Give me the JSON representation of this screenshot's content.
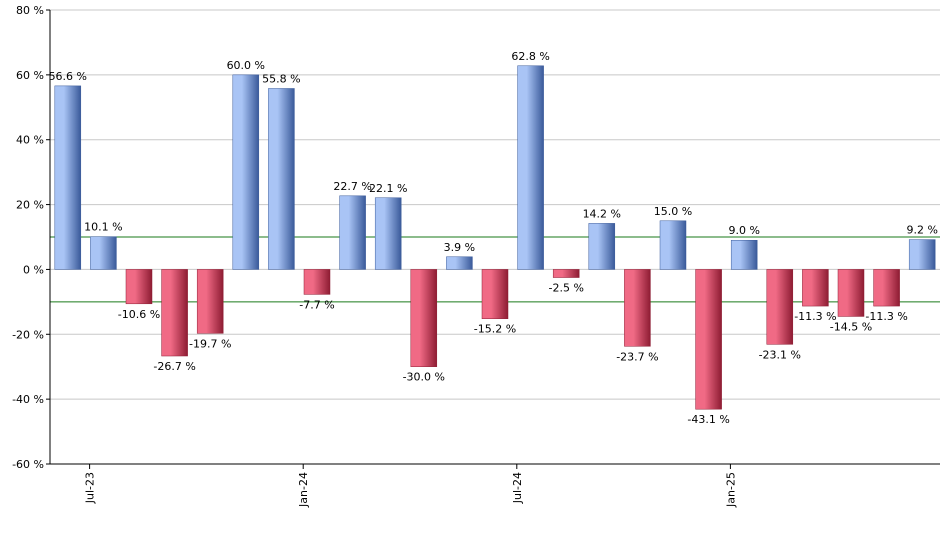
{
  "chart_data": {
    "type": "bar",
    "title": "",
    "xlabel": "",
    "ylabel": "",
    "ylim": [
      -60,
      80
    ],
    "y_ticks": [
      -60,
      -40,
      -20,
      0,
      20,
      40,
      60,
      80
    ],
    "y_tick_suffix": " %",
    "grid": true,
    "reference_lines": [
      10,
      -10
    ],
    "x_tick_labels": [
      {
        "label": "Jul-23",
        "index": 1
      },
      {
        "label": "Jan-24",
        "index": 7
      },
      {
        "label": "Jul-24",
        "index": 13
      },
      {
        "label": "Jan-25",
        "index": 19
      }
    ],
    "values": [
      56.6,
      10.1,
      -10.6,
      -26.7,
      -19.7,
      60.0,
      55.8,
      -7.7,
      22.7,
      22.1,
      -30.0,
      3.9,
      -15.2,
      62.8,
      -2.5,
      14.2,
      -23.7,
      15.0,
      -43.1,
      9.0,
      -23.1,
      -11.3,
      -14.5,
      -11.3,
      9.2
    ],
    "data_labels": [
      "56.6 %",
      "10.1 %",
      "-10.6 %",
      "-26.7 %",
      "-19.7 %",
      "60.0 %",
      "55.8 %",
      "-7.7 %",
      "22.7 %",
      "22.1 %",
      "-30.0 %",
      "3.9 %",
      "-15.2 %",
      "62.8 %",
      "-2.5 %",
      "14.2 %",
      "-23.7 %",
      "15.0 %",
      "-43.1 %",
      "9.0 %",
      "-23.1 %",
      "-11.3 %",
      "-14.5 %",
      "-11.3 %",
      "9.2 %"
    ],
    "colors": {
      "positive_light": "#a9c4f5",
      "positive_dark": "#3a5a9a",
      "negative_light": "#f06a85",
      "negative_dark": "#8e1c33",
      "reference": "#1a7a1a"
    }
  }
}
